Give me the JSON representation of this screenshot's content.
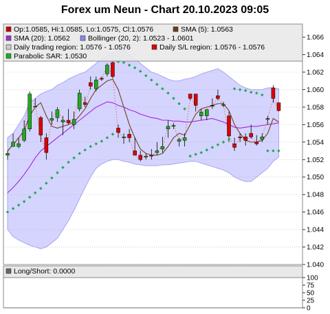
{
  "chart_data": {
    "type": "candlestick",
    "title": "Forex um Neun - Chart 20.10.2023 09:05",
    "legend": [
      {
        "text": "Op:1.0585, Hi:1.0585, Lo:1.0575, Cl:1.0576",
        "color": "#cc0000"
      },
      {
        "text": "SMA (5): 1.0563",
        "color": "#6b3a26"
      },
      {
        "text": "SMA (20): 1.0562",
        "color": "#9933cc"
      },
      {
        "text": "Bollinger (20, 2): 1.0523 - 1.0601",
        "color": "#8888ee"
      },
      {
        "text": "Daily trading region: 1.0576 - 1.0576",
        "color": "#cccccc"
      },
      {
        "text": "Daily S/L region: 1.0576 - 1.0576",
        "color": "#dd0000"
      },
      {
        "text": "Parabolic SAR: 1.0530",
        "color": "#22aa22"
      }
    ],
    "y_range": [
      1.04,
      1.0675
    ],
    "y_ticks": [
      "1.066",
      "1.064",
      "1.062",
      "1.060",
      "1.058",
      "1.056",
      "1.054",
      "1.052",
      "1.050",
      "1.048",
      "1.046",
      "1.044",
      "1.042",
      "1.040"
    ],
    "candles": [
      [
        1.0525,
        1.053,
        1.052,
        1.0527
      ],
      [
        1.0535,
        1.055,
        1.0535,
        1.054
      ],
      [
        1.0535,
        1.0545,
        1.0533,
        1.0538
      ],
      [
        1.0542,
        1.0565,
        1.054,
        1.0555
      ],
      [
        1.0555,
        1.0598,
        1.0552,
        1.0595
      ],
      [
        1.058,
        1.059,
        1.058,
        1.0581
      ],
      [
        1.0568,
        1.057,
        1.054,
        1.0548
      ],
      [
        1.0545,
        1.055,
        1.052,
        1.0528
      ],
      [
        1.0565,
        1.0575,
        1.056,
        1.0567
      ],
      [
        1.0568,
        1.058,
        1.0563,
        1.0577
      ],
      [
        1.0563,
        1.057,
        1.0548,
        1.0565
      ],
      [
        1.0565,
        1.0578,
        1.056,
        1.0562
      ],
      [
        1.056,
        1.0575,
        1.0555,
        1.0566
      ],
      [
        1.0578,
        1.06,
        1.0575,
        1.0596
      ],
      [
        1.0585,
        1.0592,
        1.058,
        1.0583
      ],
      [
        1.0608,
        1.0615,
        1.06,
        1.0604
      ],
      [
        1.0601,
        1.0615,
        1.0598,
        1.0611
      ],
      [
        1.0613,
        1.0615,
        1.061,
        1.0612
      ],
      [
        1.0618,
        1.063,
        1.0615,
        1.0628
      ],
      [
        1.0631,
        1.0635,
        1.0613,
        1.0615
      ],
      [
        1.0556,
        1.056,
        1.0545,
        1.0551
      ],
      [
        1.0545,
        1.055,
        1.0538,
        1.0546
      ],
      [
        1.0549,
        1.0555,
        1.054,
        1.0545
      ],
      [
        1.053,
        1.0545,
        1.0525,
        1.0525
      ],
      [
        1.0525,
        1.053,
        1.0518,
        1.052
      ],
      [
        1.0523,
        1.0527,
        1.052,
        1.0524
      ],
      [
        1.0525,
        1.0532,
        1.052,
        1.0524
      ],
      [
        1.0528,
        1.054,
        1.0525,
        1.053
      ],
      [
        1.0532,
        1.0546,
        1.0528,
        1.0535
      ],
      [
        1.0555,
        1.0565,
        1.0545,
        1.0558
      ],
      [
        1.0558,
        1.0562,
        1.0555,
        1.0559
      ],
      [
        1.0541,
        1.0545,
        1.0535,
        1.0543
      ],
      [
        1.0542,
        1.055,
        1.0535,
        1.0545
      ],
      [
        1.0595,
        1.0595,
        1.0588,
        1.059
      ],
      [
        1.0595,
        1.0595,
        1.0575,
        1.0582
      ],
      [
        1.057,
        1.0578,
        1.0565,
        1.0574
      ],
      [
        1.057,
        1.0578,
        1.0565,
        1.0577
      ],
      [
        1.0582,
        1.059,
        1.0578,
        1.0582
      ],
      [
        1.0593,
        1.06,
        1.0588,
        1.059
      ],
      [
        1.0582,
        1.0586,
        1.058,
        1.0583
      ],
      [
        1.057,
        1.0575,
        1.054,
        1.0547
      ],
      [
        1.0538,
        1.0545,
        1.053,
        1.0534
      ],
      [
        1.0546,
        1.055,
        1.054,
        1.0545
      ],
      [
        1.0546,
        1.055,
        1.0536,
        1.0542
      ],
      [
        1.055,
        1.056,
        1.0544,
        1.0546
      ],
      [
        1.054,
        1.0548,
        1.0536,
        1.0538
      ],
      [
        1.0543,
        1.055,
        1.054,
        1.0546
      ],
      [
        1.0566,
        1.057,
        1.056,
        1.0567
      ],
      [
        1.0602,
        1.0605,
        1.0585,
        1.059
      ],
      [
        1.0585,
        1.0585,
        1.0575,
        1.0576
      ]
    ],
    "sma5": [
      1.053,
      1.0537,
      1.0545,
      1.0553,
      1.057,
      1.058,
      1.0585,
      1.057,
      1.0558,
      1.0556,
      1.0558,
      1.056,
      1.0563,
      1.057,
      1.0578,
      1.059,
      1.06,
      1.0605,
      1.061,
      1.0612,
      1.06,
      1.058,
      1.056,
      1.0545,
      1.0532,
      1.0527,
      1.0525,
      1.0525,
      1.0527,
      1.0535,
      1.0545,
      1.055,
      1.0548,
      1.056,
      1.0572,
      1.0578,
      1.058,
      1.0582,
      1.0584,
      1.0584,
      1.0576,
      1.056,
      1.055,
      1.0542,
      1.054,
      1.054,
      1.0542,
      1.055,
      1.0567,
      1.0563
    ],
    "sma20": [
      1.0482,
      1.0488,
      1.0495,
      1.0503,
      1.0512,
      1.0522,
      1.053,
      1.0535,
      1.054,
      1.0545,
      1.055,
      1.0555,
      1.056,
      1.0565,
      1.057,
      1.0575,
      1.058,
      1.0583,
      1.0586,
      1.0585,
      1.0582,
      1.058,
      1.0577,
      1.0575,
      1.0572,
      1.057,
      1.0568,
      1.0567,
      1.0565,
      1.0565,
      1.0564,
      1.0564,
      1.0563,
      1.0563,
      1.0564,
      1.0565,
      1.0566,
      1.0567,
      1.0565,
      1.0563,
      1.056,
      1.0557,
      1.0556,
      1.0557,
      1.0558,
      1.0558,
      1.0559,
      1.056,
      1.0561,
      1.0562
    ],
    "bollinger_upper": [
      1.0545,
      1.055,
      1.056,
      1.057,
      1.0585,
      1.059,
      1.0595,
      1.0598,
      1.06,
      1.0605,
      1.0608,
      1.0612,
      1.0615,
      1.0618,
      1.062,
      1.0625,
      1.063,
      1.0635,
      1.064,
      1.0642,
      1.0645,
      1.0645,
      1.064,
      1.0635,
      1.063,
      1.0625,
      1.062,
      1.0618,
      1.0615,
      1.0612,
      1.061,
      1.061,
      1.0612,
      1.0613,
      1.0615,
      1.0618,
      1.062,
      1.0622,
      1.0624,
      1.062,
      1.0615,
      1.061,
      1.0605,
      1.0602,
      1.06,
      1.06,
      1.06,
      1.0602,
      1.0602,
      1.0601
    ],
    "bollinger_lower": [
      1.044,
      1.0432,
      1.0428,
      1.0425,
      1.0422,
      1.042,
      1.0418,
      1.042,
      1.0425,
      1.043,
      1.044,
      1.045,
      1.0462,
      1.0475,
      1.0488,
      1.05,
      1.051,
      1.0515,
      1.0518,
      1.052,
      1.052,
      1.0518,
      1.0517,
      1.0515,
      1.0514,
      1.0513,
      1.0513,
      1.0513,
      1.0514,
      1.0514,
      1.0515,
      1.0516,
      1.0517,
      1.0518,
      1.0518,
      1.0516,
      1.0514,
      1.0512,
      1.051,
      1.0508,
      1.0505,
      1.05,
      1.0497,
      1.0495,
      1.0495,
      1.05,
      1.0505,
      1.051,
      1.0518,
      1.0523
    ],
    "sar": [
      1.046,
      1.0464,
      1.0468,
      1.0472,
      1.0477,
      1.0482,
      1.0487,
      1.0493,
      1.0499,
      1.0505,
      1.0511,
      1.0517,
      1.0522,
      1.0527,
      1.0531,
      1.0535,
      1.0538,
      1.0541,
      1.0545,
      1.0549,
      1.0632,
      1.0631,
      1.0628,
      1.0625,
      1.0621,
      1.0616,
      1.0611,
      1.0606,
      1.0601,
      1.0596,
      1.059,
      1.0584,
      1.0578,
      1.0524,
      1.0526,
      1.0528,
      1.0531,
      1.0534,
      1.0537,
      1.054,
      1.0543,
      1.0601,
      1.06,
      1.0599,
      1.0597,
      1.0596,
      1.0594,
      1.053,
      1.053,
      1.053
    ],
    "sub_panel": {
      "label": "Long/Short: 0.0000",
      "value": 0.0,
      "y_range": [
        0,
        100
      ],
      "y_ticks": [
        "100",
        "75",
        "50",
        "25",
        "0"
      ]
    }
  }
}
